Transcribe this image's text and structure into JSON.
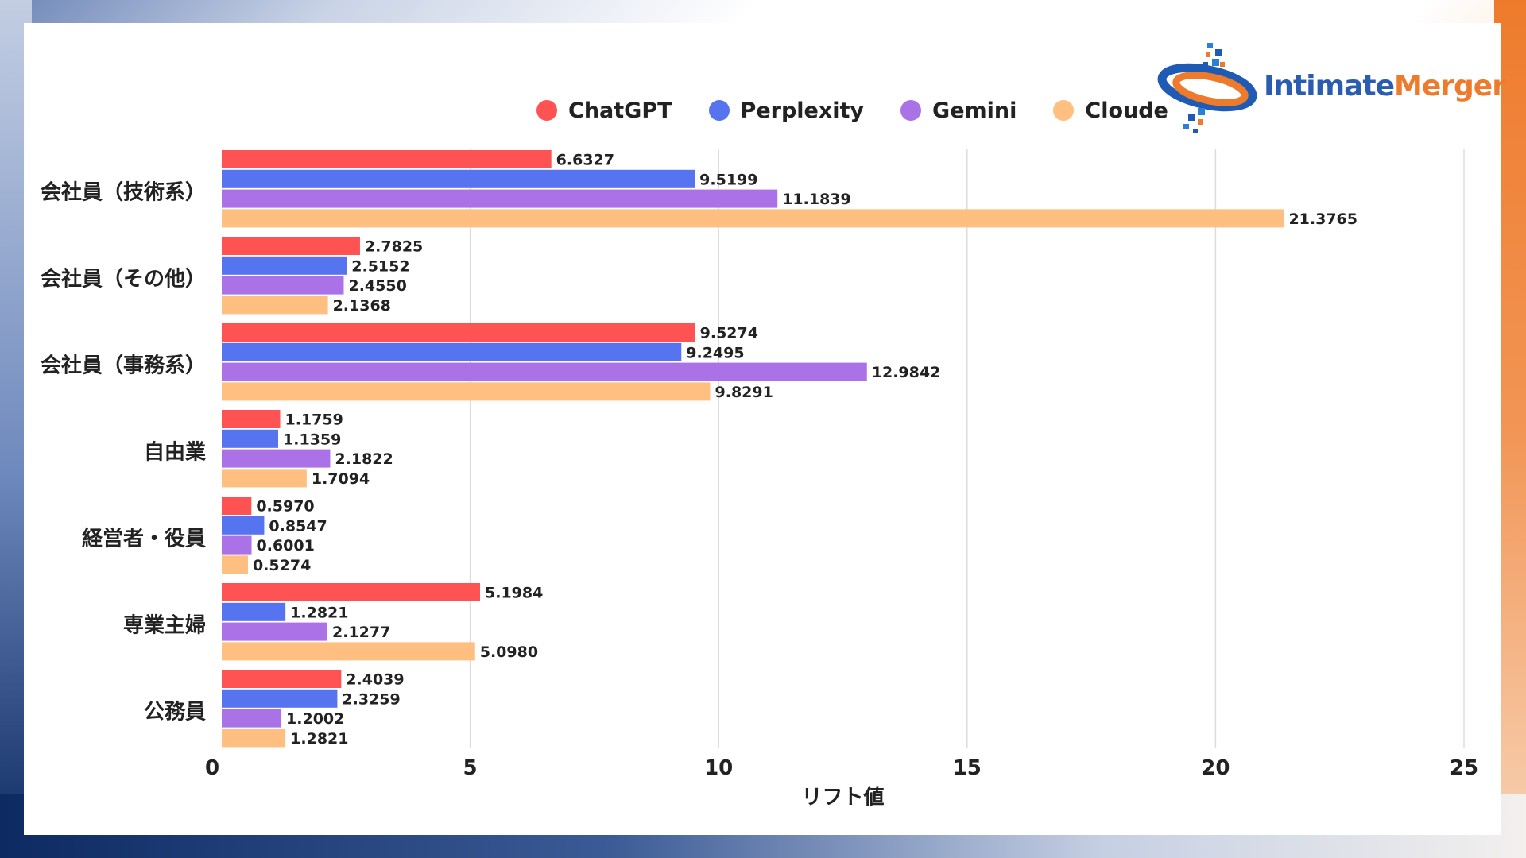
{
  "legend": [
    {
      "name": "ChatGPT",
      "color": "#ff5252"
    },
    {
      "name": "Perplexity",
      "color": "#5673f0"
    },
    {
      "name": "Gemini",
      "color": "#ab72e8"
    },
    {
      "name": "Cloude",
      "color": "#ffbf80"
    }
  ],
  "logo": {
    "part1": "Intimate",
    "part2": "Merger",
    "icon": "intimate-merger-logo-icon"
  },
  "chart_data": {
    "type": "bar",
    "orientation": "horizontal",
    "categories": [
      "会社員（技術系）",
      "会社員（その他）",
      "会社員（事務系）",
      "自由業",
      "経営者・役員",
      "専業主婦",
      "公務員"
    ],
    "series": [
      {
        "name": "ChatGPT",
        "color": "#ff5252",
        "values": [
          6.6327,
          2.7825,
          9.5274,
          1.1759,
          0.597,
          5.1984,
          2.4039
        ]
      },
      {
        "name": "Perplexity",
        "color": "#5673f0",
        "values": [
          9.5199,
          2.5152,
          9.2495,
          1.1359,
          0.8547,
          1.2821,
          2.3259
        ]
      },
      {
        "name": "Gemini",
        "color": "#ab72e8",
        "values": [
          11.1839,
          2.455,
          12.9842,
          2.1822,
          0.6001,
          2.1277,
          1.2002
        ]
      },
      {
        "name": "Cloude",
        "color": "#ffbf80",
        "values": [
          21.3765,
          2.1368,
          9.8291,
          1.7094,
          0.5274,
          5.098,
          1.2821
        ]
      }
    ],
    "value_labels": [
      [
        "6.6327",
        "2.7825",
        "9.5274",
        "1.1759",
        "0.5970",
        "5.1984",
        "2.4039"
      ],
      [
        "9.5199",
        "2.5152",
        "9.2495",
        "1.1359",
        "0.8547",
        "1.2821",
        "2.3259"
      ],
      [
        "11.1839",
        "2.4550",
        "12.9842",
        "2.1822",
        "0.6001",
        "2.1277",
        "1.2002"
      ],
      [
        "21.3765",
        "2.1368",
        "9.8291",
        "1.7094",
        "0.5274",
        "5.0980",
        "1.2821"
      ]
    ],
    "xlabel": "リフト値",
    "xlim": [
      0,
      25
    ],
    "xticks": [
      0,
      5,
      10,
      15,
      20,
      25
    ],
    "grid": "vertical",
    "legend_position": "top"
  }
}
